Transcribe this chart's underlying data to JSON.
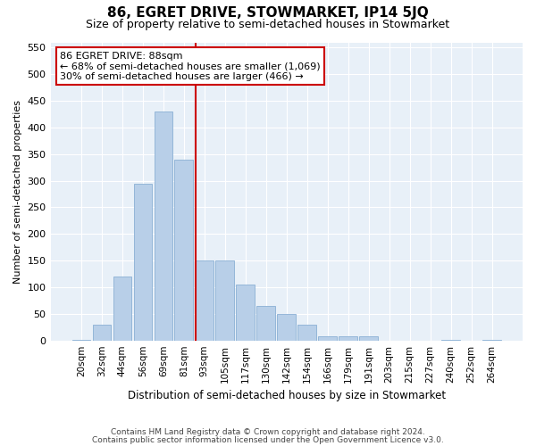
{
  "title": "86, EGRET DRIVE, STOWMARKET, IP14 5JQ",
  "subtitle": "Size of property relative to semi-detached houses in Stowmarket",
  "xlabel": "Distribution of semi-detached houses by size in Stowmarket",
  "ylabel": "Number of semi-detached properties",
  "categories": [
    "20sqm",
    "32sqm",
    "44sqm",
    "56sqm",
    "69sqm",
    "81sqm",
    "93sqm",
    "105sqm",
    "117sqm",
    "130sqm",
    "142sqm",
    "154sqm",
    "166sqm",
    "179sqm",
    "191sqm",
    "203sqm",
    "215sqm",
    "227sqm",
    "240sqm",
    "252sqm",
    "264sqm"
  ],
  "values": [
    1,
    30,
    120,
    295,
    430,
    340,
    150,
    150,
    105,
    65,
    50,
    30,
    8,
    8,
    8,
    0,
    0,
    0,
    1,
    0,
    1
  ],
  "bar_color": "#b8cfe8",
  "bar_edge_color": "#8ab0d4",
  "vline_color": "#cc0000",
  "annotation_text": "86 EGRET DRIVE: 88sqm\n← 68% of semi-detached houses are smaller (1,069)\n30% of semi-detached houses are larger (466) →",
  "annotation_box_color": "#ffffff",
  "annotation_box_edge": "#cc0000",
  "ylim": [
    0,
    560
  ],
  "yticks": [
    0,
    50,
    100,
    150,
    200,
    250,
    300,
    350,
    400,
    450,
    500,
    550
  ],
  "bg_color": "#e8f0f8",
  "footer1": "Contains HM Land Registry data © Crown copyright and database right 2024.",
  "footer2": "Contains public sector information licensed under the Open Government Licence v3.0.",
  "title_fontsize": 11,
  "subtitle_fontsize": 9,
  "annot_fontsize": 8
}
